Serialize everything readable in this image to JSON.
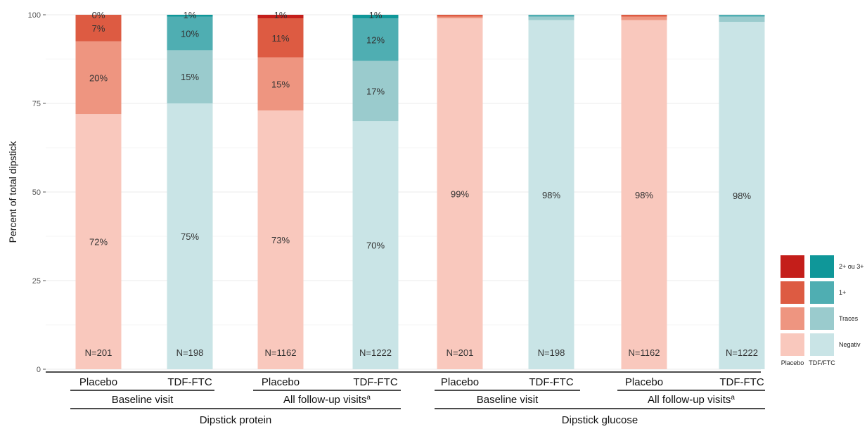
{
  "chart_data": {
    "type": "bar",
    "stacked": true,
    "ylabel": "Percent of total dipstick",
    "ylim": [
      0,
      100
    ],
    "yticks": [
      0,
      25,
      50,
      75,
      100
    ],
    "grid": true,
    "legend": {
      "placement": "bottom-right",
      "columns": [
        "Placebo",
        "TDF/FTC"
      ],
      "levels": [
        "2+ ou 3+",
        "1+",
        "Traces",
        "Negativ"
      ]
    },
    "colors": {
      "Placebo": {
        "Negative": "#f9c8bd",
        "Traces": "#ee9580",
        "1+": "#dd5b42",
        "2+ ou 3+": "#c41e1a"
      },
      "TDF/FTC": {
        "Negative": "#c9e4e6",
        "Traces": "#9acbcd",
        "1+": "#4faeb2",
        "2+ ou 3+": "#0f9799"
      }
    },
    "bars": [
      {
        "category": "Placebo",
        "visit": "Baseline visit",
        "test": "Dipstick protein",
        "arm": "Placebo",
        "n": "N=201",
        "segments": [
          {
            "level": "Negative",
            "value": 72,
            "label": "72%"
          },
          {
            "level": "Traces",
            "value": 20.5,
            "label": "20%"
          },
          {
            "level": "1+",
            "value": 7.5,
            "label": "7%"
          },
          {
            "level": "2+ ou 3+",
            "value": 0,
            "label": "0%"
          }
        ]
      },
      {
        "category": "TDF-FTC",
        "visit": "Baseline visit",
        "test": "Dipstick protein",
        "arm": "TDF/FTC",
        "n": "N=198",
        "segments": [
          {
            "level": "Negative",
            "value": 75,
            "label": "75%"
          },
          {
            "level": "Traces",
            "value": 15,
            "label": "15%"
          },
          {
            "level": "1+",
            "value": 9.5,
            "label": "10%"
          },
          {
            "level": "2+ ou 3+",
            "value": 0.5,
            "label": "1%"
          }
        ]
      },
      {
        "category": "Placebo",
        "visit": "All follow-up visits",
        "test": "Dipstick protein",
        "arm": "Placebo",
        "n": "N=1162",
        "segments": [
          {
            "level": "Negative",
            "value": 73,
            "label": "73%"
          },
          {
            "level": "Traces",
            "value": 15,
            "label": "15%"
          },
          {
            "level": "1+",
            "value": 11,
            "label": "11%"
          },
          {
            "level": "2+ ou 3+",
            "value": 1,
            "label": "1%"
          }
        ]
      },
      {
        "category": "TDF-FTC",
        "visit": "All follow-up visits",
        "test": "Dipstick protein",
        "arm": "TDF/FTC",
        "n": "N=1222",
        "segments": [
          {
            "level": "Negative",
            "value": 70,
            "label": "70%"
          },
          {
            "level": "Traces",
            "value": 17,
            "label": "17%"
          },
          {
            "level": "1+",
            "value": 12,
            "label": "12%"
          },
          {
            "level": "2+ ou 3+",
            "value": 1,
            "label": "1%"
          }
        ]
      },
      {
        "category": "Placebo",
        "visit": "Baseline visit",
        "test": "Dipstick glucose",
        "arm": "Placebo",
        "n": "N=201",
        "segments": [
          {
            "level": "Negative",
            "value": 99,
            "label": "99%"
          },
          {
            "level": "Traces",
            "value": 0.5,
            "label": ""
          },
          {
            "level": "1+",
            "value": 0.5,
            "label": ""
          },
          {
            "level": "2+ ou 3+",
            "value": 0,
            "label": ""
          }
        ]
      },
      {
        "category": "TDF-FTC",
        "visit": "Baseline visit",
        "test": "Dipstick glucose",
        "arm": "TDF/FTC",
        "n": "N=198",
        "segments": [
          {
            "level": "Negative",
            "value": 98.5,
            "label": "98%"
          },
          {
            "level": "Traces",
            "value": 1,
            "label": ""
          },
          {
            "level": "1+",
            "value": 0.5,
            "label": ""
          },
          {
            "level": "2+ ou 3+",
            "value": 0,
            "label": ""
          }
        ]
      },
      {
        "category": "Placebo",
        "visit": "All follow-up visits",
        "test": "Dipstick glucose",
        "arm": "Placebo",
        "n": "N=1162",
        "segments": [
          {
            "level": "Negative",
            "value": 98.5,
            "label": "98%"
          },
          {
            "level": "Traces",
            "value": 1,
            "label": ""
          },
          {
            "level": "1+",
            "value": 0.5,
            "label": ""
          },
          {
            "level": "2+ ou 3+",
            "value": 0,
            "label": ""
          }
        ]
      },
      {
        "category": "TDF-FTC",
        "visit": "All follow-up visits",
        "test": "Dipstick glucose",
        "arm": "TDF/FTC",
        "n": "N=1222",
        "segments": [
          {
            "level": "Negative",
            "value": 98,
            "label": "98%"
          },
          {
            "level": "Traces",
            "value": 1.5,
            "label": ""
          },
          {
            "level": "1+",
            "value": 0.5,
            "label": ""
          },
          {
            "level": "2+ ou 3+",
            "value": 0,
            "label": ""
          }
        ]
      }
    ],
    "visit_groups": [
      {
        "label": "Baseline visit",
        "superscript": ""
      },
      {
        "label": "All follow-up visits",
        "superscript": "a"
      },
      {
        "label": "Baseline visit",
        "superscript": ""
      },
      {
        "label": "All follow-up visits",
        "superscript": "a"
      }
    ],
    "test_groups": [
      "Dipstick protein",
      "Dipstick glucose"
    ]
  }
}
